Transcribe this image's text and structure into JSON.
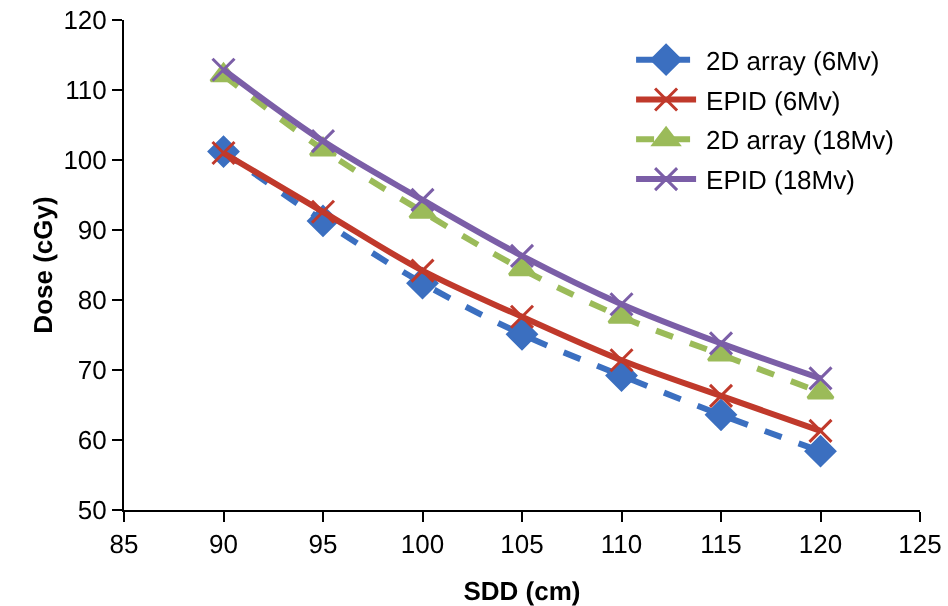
{
  "chart_data": {
    "type": "line",
    "xlabel": "SDD (cm)",
    "ylabel": "Dose (cGy)",
    "x": [
      90,
      95,
      100,
      105,
      110,
      115,
      120
    ],
    "series": [
      {
        "name": "2D array (6Mv)",
        "color": "#3b6fc0",
        "line_style": "dashed",
        "marker": "diamond",
        "values": [
          101.2,
          91.3,
          82.4,
          75.1,
          69.2,
          63.6,
          58.4
        ]
      },
      {
        "name": "EPID (6Mv)",
        "color": "#c0392b",
        "line_style": "solid",
        "marker": "cross",
        "values": [
          101,
          92.6,
          84.2,
          77.6,
          71.4,
          66.3,
          61.3
        ]
      },
      {
        "name": "2D array (18Mv)",
        "color": "#9bbb59",
        "line_style": "dashed",
        "marker": "triangle",
        "values": [
          112.1,
          101.5,
          92.6,
          84.4,
          77.6,
          72.2,
          66.8
        ]
      },
      {
        "name": "EPID (18Mv)",
        "color": "#7b5ea7",
        "line_style": "solid",
        "marker": "cross",
        "values": [
          112.9,
          102.7,
          94.3,
          86.3,
          79.4,
          73.8,
          68.8
        ]
      }
    ],
    "xlim": [
      85,
      125
    ],
    "xticks": [
      85,
      90,
      95,
      100,
      105,
      110,
      115,
      120,
      125
    ],
    "ylim": [
      50,
      120
    ],
    "yticks": [
      50,
      60,
      70,
      80,
      90,
      100,
      110,
      120
    ],
    "grid": false,
    "legend": "top right"
  }
}
